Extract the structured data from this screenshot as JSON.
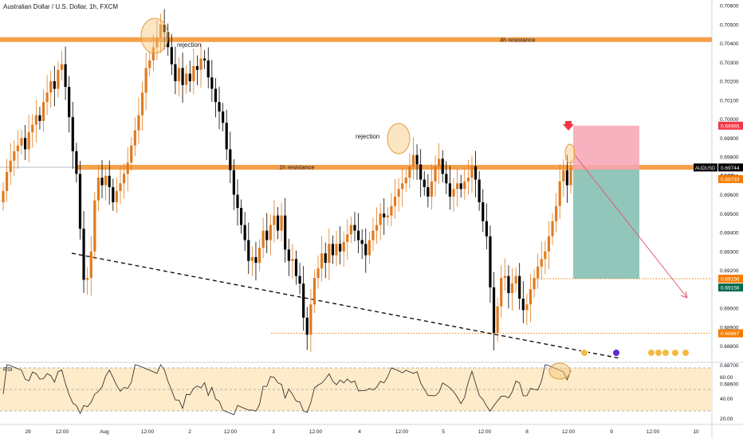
{
  "header": {
    "title": "Australian Dollar / U.S. Dollar, 1h, FXCM"
  },
  "chart_data": [
    {
      "type": "candlestick",
      "title": "Australian Dollar / U.S. Dollar, 1h, FXCM",
      "symbol": "AUDUSD",
      "timeframe": "1h",
      "ylim": [
        0.6856,
        0.7063
      ],
      "grid": false,
      "y_ticks": [
        "0.70600",
        "0.70500",
        "0.70400",
        "0.70300",
        "0.70200",
        "0.70100",
        "0.70000",
        "0.69900",
        "0.69800",
        "0.69700",
        "0.69600",
        "0.69500",
        "0.69400",
        "0.69300",
        "0.69200",
        "0.69100",
        "0.69000",
        "0.68900",
        "0.68800",
        "0.68700",
        "0.68600"
      ],
      "x_ticks": [
        "29",
        "12:00",
        "Aug",
        "12:00",
        "2",
        "12:00",
        "3",
        "12:00",
        "4",
        "12:00",
        "5",
        "12:00",
        "8",
        "12:00",
        "9",
        "12:00",
        "10"
      ],
      "price_labels": {
        "last": "0.69744",
        "countdown": "04:33",
        "stop": "0.69965",
        "entry": "0.69733",
        "target_a": "0.69156",
        "target_b": "0.69156",
        "support": "0.68867"
      },
      "level_colors": {
        "last": "#000000",
        "stop": "#f23645",
        "entry": "#f57c00",
        "target_a": "#f57c00",
        "target_b": "#006b4e",
        "support": "#f57c00"
      },
      "levels": [
        {
          "name": "4h resistance",
          "price": 0.7042
        },
        {
          "name": "1h resistance",
          "price": 0.69745
        }
      ],
      "support_price": 0.68867,
      "annotations": [
        "rejection",
        "rejection"
      ],
      "position": {
        "side": "short",
        "entry": 0.69733,
        "stop": 0.69965,
        "target": 0.69156
      },
      "bull_color": "#e07b1f",
      "bear_color": "#000000",
      "closes": [
        0.6962,
        0.6972,
        0.6978,
        0.6983,
        0.6986,
        0.699,
        0.6984,
        0.6993,
        0.6997,
        0.7002,
        0.6999,
        0.7009,
        0.7014,
        0.702,
        0.7016,
        0.7026,
        0.7029,
        0.7017,
        0.7001,
        0.6983,
        0.6971,
        0.6942,
        0.6915,
        0.6916,
        0.693,
        0.6957,
        0.6969,
        0.6965,
        0.697,
        0.6964,
        0.6956,
        0.6962,
        0.6966,
        0.6971,
        0.6977,
        0.6986,
        0.6994,
        0.7002,
        0.7014,
        0.7027,
        0.7031,
        0.7038,
        0.7043,
        0.705,
        0.7046,
        0.7038,
        0.7029,
        0.702,
        0.7027,
        0.7018,
        0.7024,
        0.702,
        0.7028,
        0.7026,
        0.7032,
        0.7031,
        0.7022,
        0.7016,
        0.7009,
        0.7004,
        0.6998,
        0.6984,
        0.6973,
        0.696,
        0.6953,
        0.6944,
        0.6936,
        0.6925,
        0.6927,
        0.6924,
        0.6932,
        0.6941,
        0.6936,
        0.6944,
        0.6949,
        0.6941,
        0.6949,
        0.6931,
        0.6925,
        0.6926,
        0.6917,
        0.6913,
        0.6895,
        0.6886,
        0.6902,
        0.6916,
        0.6921,
        0.6929,
        0.6924,
        0.6934,
        0.6928,
        0.6934,
        0.693,
        0.6935,
        0.6939,
        0.6944,
        0.6941,
        0.6936,
        0.6934,
        0.6928,
        0.6936,
        0.6941,
        0.6944,
        0.695,
        0.6948,
        0.6949,
        0.6954,
        0.6959,
        0.6963,
        0.6966,
        0.6969,
        0.6975,
        0.6981,
        0.6976,
        0.6968,
        0.6964,
        0.6959,
        0.6967,
        0.6975,
        0.6979,
        0.6971,
        0.6966,
        0.6959,
        0.6963,
        0.6966,
        0.6963,
        0.6967,
        0.6969,
        0.6975,
        0.6968,
        0.6956,
        0.6946,
        0.6938,
        0.6911,
        0.6887,
        0.6901,
        0.6916,
        0.6917,
        0.6908,
        0.6913,
        0.6917,
        0.6905,
        0.6899,
        0.6902,
        0.691,
        0.6916,
        0.6922,
        0.6926,
        0.693,
        0.6938,
        0.6946,
        0.6954,
        0.6967,
        0.6973,
        0.6965,
        0.6974
      ],
      "rsi": {
        "label": "RSI",
        "y_ticks": [
          "60.00",
          "40.00",
          "20.00"
        ],
        "bands": [
          70,
          50,
          30
        ]
      }
    }
  ],
  "colors": {
    "resistance": "#f5a04a",
    "risk_zone": "#f7a4b4",
    "reward_zone": "#6fb3a4",
    "projection": "#e05a6e",
    "rsi_band": "#fdebc9"
  }
}
